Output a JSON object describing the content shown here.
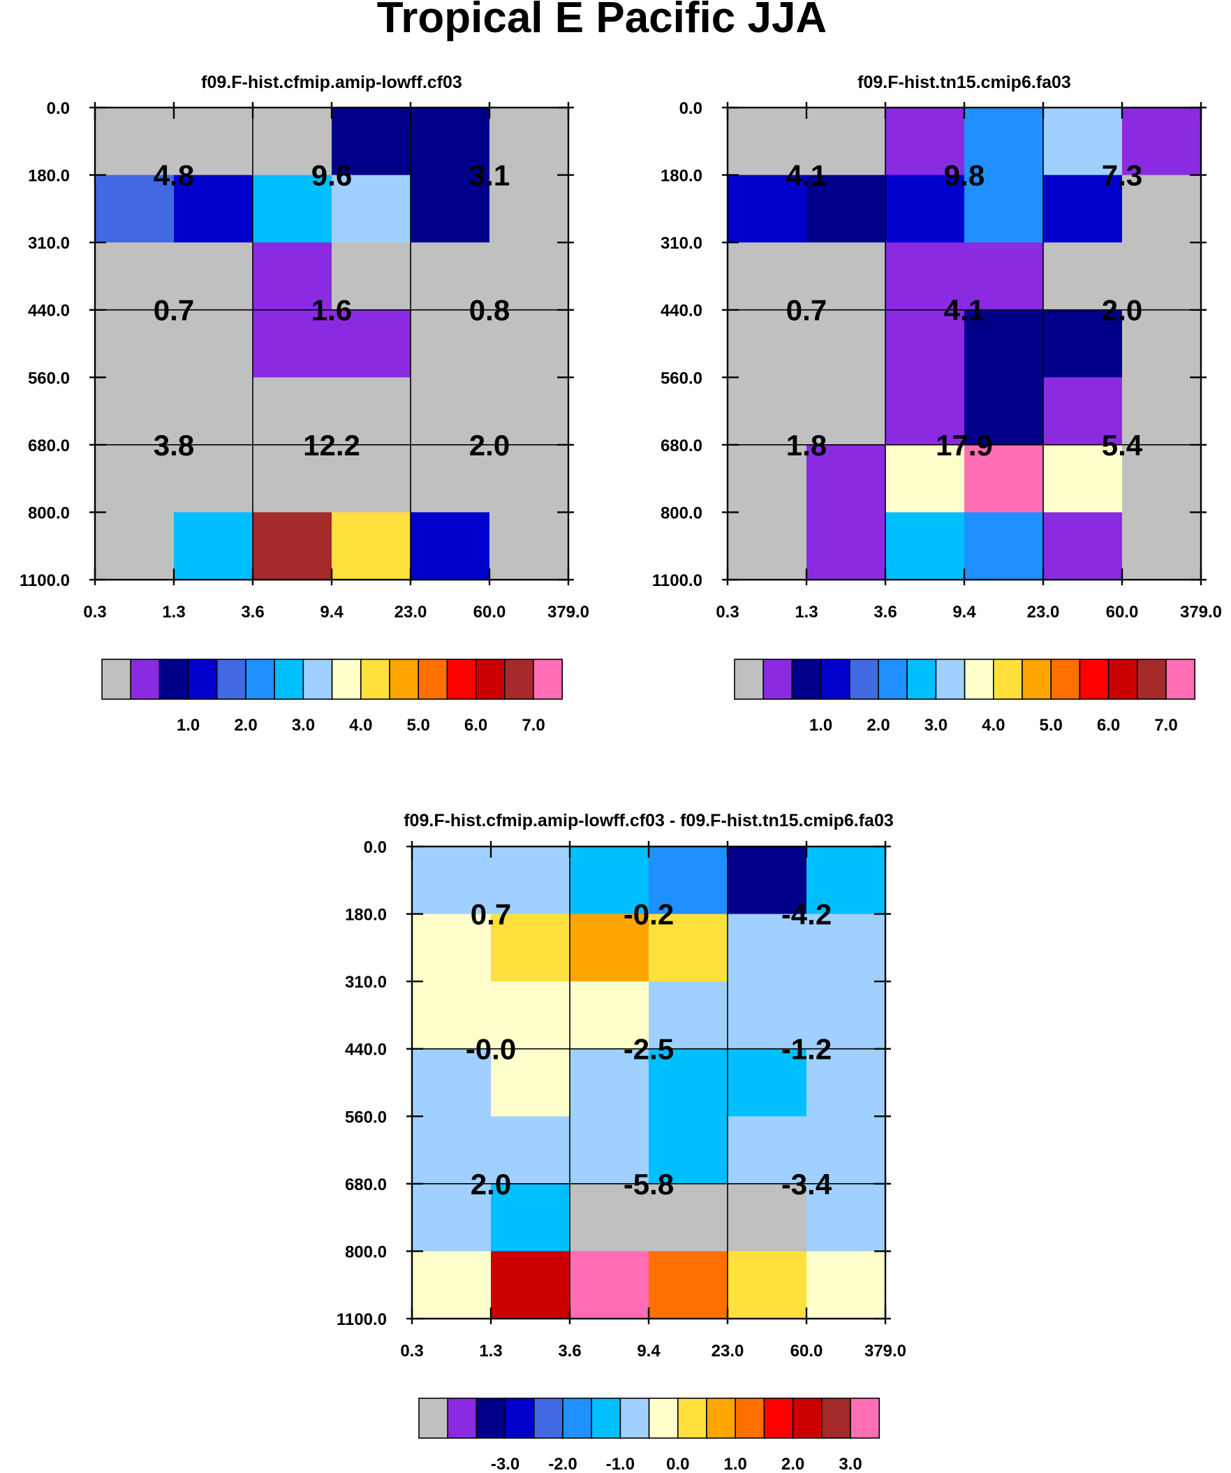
{
  "title": "Tropical E Pacific JJA",
  "palette_colors": [
    "#c0c0c0",
    "#8a2be2",
    "#00008b",
    "#0000cd",
    "#4169e1",
    "#1e90ff",
    "#00bfff",
    "#a0d0ff",
    "#ffffcc",
    "#ffe03c",
    "#ffa500",
    "#ff7000",
    "#ff0000",
    "#cc0000",
    "#a52a2a",
    "#ff6eb4"
  ],
  "chart_data": [
    {
      "type": "heatmap",
      "title": "f09.F-hist.cfmip.amip-lowff.cf03",
      "x_tick_labels": [
        "0.3",
        "1.3",
        "3.6",
        "9.4",
        "23.0",
        "60.0",
        "379.0"
      ],
      "y_tick_labels": [
        "0.0",
        "180.0",
        "310.0",
        "440.0",
        "560.0",
        "680.0",
        "800.0",
        "1100.0"
      ],
      "cell_color_index": [
        [
          0,
          0,
          0,
          2,
          2,
          0
        ],
        [
          4,
          3,
          6,
          7,
          2,
          0
        ],
        [
          0,
          0,
          1,
          0,
          0,
          0
        ],
        [
          0,
          0,
          1,
          1,
          0,
          0
        ],
        [
          0,
          0,
          0,
          0,
          0,
          0
        ],
        [
          0,
          0,
          0,
          0,
          0,
          0
        ],
        [
          0,
          6,
          14,
          9,
          3,
          0
        ]
      ],
      "cell_labels": [
        [
          "4.8",
          "9.6",
          "3.1"
        ],
        [
          "0.7",
          "1.6",
          "0.8"
        ],
        [
          "3.8",
          "12.2",
          "2.0"
        ]
      ],
      "colorbar_tick_labels": [
        "1.0",
        "2.0",
        "3.0",
        "4.0",
        "5.0",
        "6.0",
        "7.0"
      ]
    },
    {
      "type": "heatmap",
      "title": "f09.F-hist.tn15.cmip6.fa03",
      "x_tick_labels": [
        "0.3",
        "1.3",
        "3.6",
        "9.4",
        "23.0",
        "60.0",
        "379.0"
      ],
      "y_tick_labels": [
        "0.0",
        "180.0",
        "310.0",
        "440.0",
        "560.0",
        "680.0",
        "800.0",
        "1100.0"
      ],
      "cell_color_index": [
        [
          0,
          0,
          1,
          5,
          7,
          1
        ],
        [
          3,
          2,
          3,
          5,
          3,
          0
        ],
        [
          0,
          0,
          1,
          1,
          0,
          0
        ],
        [
          0,
          0,
          1,
          2,
          2,
          0
        ],
        [
          0,
          0,
          1,
          2,
          1,
          0
        ],
        [
          0,
          1,
          8,
          15,
          8,
          0
        ],
        [
          0,
          1,
          6,
          5,
          1,
          0
        ]
      ],
      "cell_labels": [
        [
          "4.1",
          "9.8",
          "7.3"
        ],
        [
          "0.7",
          "4.1",
          "2.0"
        ],
        [
          "1.8",
          "17.9",
          "5.4"
        ]
      ],
      "colorbar_tick_labels": [
        "1.0",
        "2.0",
        "3.0",
        "4.0",
        "5.0",
        "6.0",
        "7.0"
      ]
    },
    {
      "type": "heatmap",
      "title": "f09.F-hist.cfmip.amip-lowff.cf03 - f09.F-hist.tn15.cmip6.fa03",
      "x_tick_labels": [
        "0.3",
        "1.3",
        "3.6",
        "9.4",
        "23.0",
        "60.0",
        "379.0"
      ],
      "y_tick_labels": [
        "0.0",
        "180.0",
        "310.0",
        "440.0",
        "560.0",
        "680.0",
        "800.0",
        "1100.0"
      ],
      "cell_color_index": [
        [
          7,
          7,
          6,
          5,
          2,
          6
        ],
        [
          8,
          9,
          10,
          9,
          7,
          7
        ],
        [
          8,
          8,
          8,
          7,
          7,
          7
        ],
        [
          7,
          8,
          7,
          6,
          6,
          7
        ],
        [
          7,
          7,
          7,
          6,
          7,
          7
        ],
        [
          7,
          6,
          0,
          0,
          0,
          7
        ],
        [
          8,
          13,
          15,
          11,
          9,
          8
        ]
      ],
      "cell_labels": [
        [
          "0.7",
          "-0.2",
          "-4.2"
        ],
        [
          "-0.0",
          "-2.5",
          "-1.2"
        ],
        [
          "2.0",
          "-5.8",
          "-3.4"
        ]
      ],
      "colorbar_tick_labels": [
        "-3.0",
        "-2.0",
        "-1.0",
        "0.0",
        "1.0",
        "2.0",
        "3.0"
      ]
    }
  ]
}
